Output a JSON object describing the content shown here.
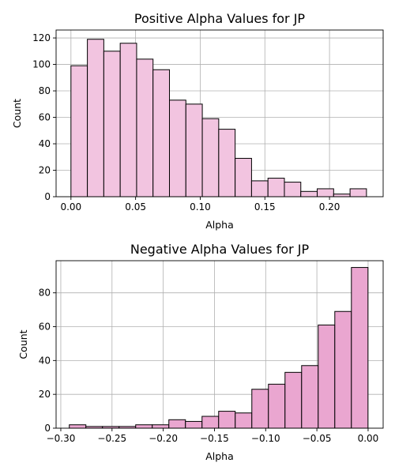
{
  "chart_data": [
    {
      "type": "bar",
      "title": "Positive Alpha Values for JP",
      "xlabel": "Alpha",
      "ylabel": "Count",
      "xlim": [
        -0.0115,
        0.2415
      ],
      "ylim": [
        0,
        126
      ],
      "x_ticks": [
        0.0,
        0.05,
        0.1,
        0.15,
        0.2
      ],
      "x_tick_labels": [
        "0.00",
        "0.05",
        "0.10",
        "0.15",
        "0.20"
      ],
      "y_ticks": [
        0,
        20,
        40,
        60,
        80,
        100,
        120
      ],
      "y_tick_labels": [
        "0",
        "20",
        "40",
        "60",
        "80",
        "100",
        "120"
      ],
      "grid": true,
      "bar_color": "#f2c4e0",
      "bin_edges": [
        0.0,
        0.0127,
        0.0254,
        0.0381,
        0.0508,
        0.0635,
        0.0762,
        0.0889,
        0.1016,
        0.1143,
        0.127,
        0.1397,
        0.1524,
        0.1651,
        0.1778,
        0.1905,
        0.2032,
        0.2159,
        0.2286
      ],
      "values": [
        99,
        119,
        110,
        116,
        104,
        96,
        73,
        70,
        59,
        51,
        29,
        12,
        14,
        11,
        4,
        6,
        2,
        6
      ]
    },
    {
      "type": "bar",
      "title": "Negative Alpha Values for JP",
      "xlabel": "Alpha",
      "ylabel": "Count",
      "xlim": [
        -0.3046,
        0.0147
      ],
      "ylim": [
        0,
        99
      ],
      "x_ticks": [
        -0.3,
        -0.25,
        -0.2,
        -0.15,
        -0.1,
        -0.05,
        0.0
      ],
      "x_tick_labels": [
        "−0.30",
        "−0.25",
        "−0.20",
        "−0.15",
        "−0.10",
        "−0.05",
        "0.00"
      ],
      "y_ticks": [
        0,
        20,
        40,
        60,
        80
      ],
      "y_tick_labels": [
        "0",
        "20",
        "40",
        "60",
        "80"
      ],
      "grid": true,
      "bar_color": "#eaa6d0",
      "bin_edges": [
        -0.2917,
        -0.2755,
        -0.2593,
        -0.2431,
        -0.2269,
        -0.2107,
        -0.1945,
        -0.1783,
        -0.1621,
        -0.1459,
        -0.1297,
        -0.1135,
        -0.0973,
        -0.0811,
        -0.0649,
        -0.0487,
        -0.0325,
        -0.0163,
        -0.0001
      ],
      "values": [
        2,
        1,
        1,
        1,
        2,
        2,
        5,
        4,
        7,
        10,
        9,
        23,
        26,
        33,
        37,
        61,
        69,
        95
      ]
    }
  ]
}
